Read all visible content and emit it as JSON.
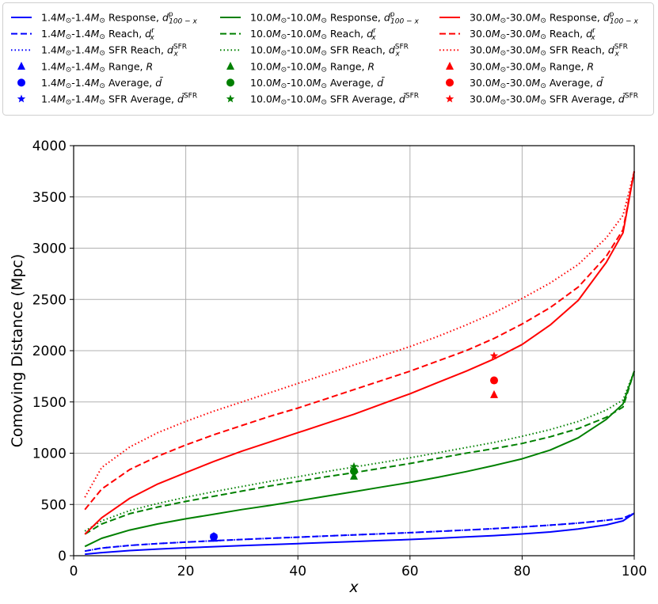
{
  "chart_data": {
    "type": "line",
    "xlabel": "x",
    "ylabel": "Comoving Distance (Mpc)",
    "xlim": [
      0,
      100
    ],
    "ylim": [
      0,
      4000
    ],
    "xticks": [
      "0",
      "20",
      "40",
      "60",
      "80",
      "100"
    ],
    "yticks": [
      "0",
      "500",
      "1000",
      "1500",
      "2000",
      "2500",
      "3000",
      "3500",
      "4000"
    ],
    "grid": true,
    "legend_position": "top",
    "colors": {
      "1.4": "#0000ff",
      "10": "#008000",
      "30": "#ff0000"
    },
    "x": [
      2,
      5,
      10,
      15,
      20,
      25,
      30,
      35,
      40,
      45,
      50,
      55,
      60,
      65,
      70,
      75,
      80,
      85,
      90,
      95,
      98,
      100
    ],
    "series": [
      {
        "name": "1.4M⊙-1.4M⊙ Response, d^p_{100-x}",
        "color": "#0000ff",
        "style": "solid",
        "values": [
          15,
          30,
          50,
          65,
          77,
          88,
          98,
          108,
          118,
          128,
          138,
          148,
          158,
          170,
          183,
          196,
          212,
          232,
          260,
          300,
          340,
          415
        ]
      },
      {
        "name": "1.4M⊙-1.4M⊙ Reach, d^r_x",
        "color": "#0000ff",
        "style": "dashed",
        "values": [
          45,
          75,
          100,
          118,
          133,
          146,
          158,
          170,
          181,
          192,
          203,
          214,
          225,
          237,
          250,
          264,
          280,
          298,
          318,
          345,
          365,
          415
        ]
      },
      {
        "name": "1.4M⊙-1.4M⊙ SFR Reach, d^SFR_x",
        "color": "#0000ff",
        "style": "dotted",
        "values": [
          45,
          75,
          100,
          118,
          133,
          146,
          158,
          170,
          181,
          192,
          203,
          214,
          225,
          237,
          250,
          264,
          280,
          298,
          318,
          345,
          365,
          415
        ]
      },
      {
        "name": "10.0M⊙-10.0M⊙ Response, d^p_{100-x}",
        "color": "#008000",
        "style": "solid",
        "values": [
          90,
          170,
          250,
          310,
          360,
          405,
          450,
          490,
          535,
          580,
          625,
          670,
          715,
          765,
          820,
          880,
          945,
          1030,
          1150,
          1330,
          1480,
          1800
        ]
      },
      {
        "name": "10.0M⊙-10.0M⊙ Reach, d^r_x",
        "color": "#008000",
        "style": "dashed",
        "values": [
          210,
          310,
          410,
          475,
          530,
          580,
          630,
          680,
          725,
          770,
          810,
          855,
          900,
          950,
          1000,
          1045,
          1095,
          1160,
          1240,
          1350,
          1450,
          1800
        ]
      },
      {
        "name": "10.0M⊙-10.0M⊙ SFR Reach, d^SFR_x",
        "color": "#008000",
        "style": "dotted",
        "values": [
          240,
          340,
          440,
          510,
          570,
          625,
          675,
          725,
          770,
          820,
          865,
          910,
          955,
          1005,
          1055,
          1105,
          1165,
          1230,
          1310,
          1420,
          1520,
          1800
        ]
      },
      {
        "name": "30.0M⊙-30.0M⊙ Response, d^p_{100-x}",
        "color": "#ff0000",
        "style": "solid",
        "values": [
          210,
          370,
          560,
          700,
          810,
          920,
          1020,
          1110,
          1200,
          1290,
          1380,
          1480,
          1580,
          1690,
          1800,
          1920,
          2060,
          2250,
          2490,
          2860,
          3150,
          3750
        ]
      },
      {
        "name": "30.0M⊙-30.0M⊙ Reach, d^r_x",
        "color": "#ff0000",
        "style": "dashed",
        "values": [
          450,
          650,
          840,
          970,
          1080,
          1180,
          1270,
          1360,
          1440,
          1530,
          1620,
          1710,
          1800,
          1900,
          2000,
          2120,
          2260,
          2420,
          2620,
          2920,
          3180,
          3750
        ]
      },
      {
        "name": "30.0M⊙-30.0M⊙ SFR Reach, d^SFR_x",
        "color": "#ff0000",
        "style": "dotted",
        "values": [
          570,
          860,
          1060,
          1200,
          1310,
          1410,
          1500,
          1590,
          1680,
          1770,
          1860,
          1950,
          2040,
          2140,
          2250,
          2370,
          2510,
          2660,
          2840,
          3100,
          3320,
          3750
        ]
      }
    ],
    "points": [
      {
        "name": "1.4M⊙-1.4M⊙ Range, R",
        "color": "#0000ff",
        "marker": "triangle",
        "x": 25,
        "y": 170
      },
      {
        "name": "1.4M⊙-1.4M⊙ Average, d̄",
        "color": "#0000ff",
        "marker": "circle",
        "x": 25,
        "y": 185
      },
      {
        "name": "1.4M⊙-1.4M⊙ SFR Average, d̄^SFR",
        "color": "#0000ff",
        "marker": "star",
        "x": 25,
        "y": 192
      },
      {
        "name": "10.0M⊙-10.0M⊙ Range, R",
        "color": "#008000",
        "marker": "triangle",
        "x": 50,
        "y": 775
      },
      {
        "name": "10.0M⊙-10.0M⊙ Average, d̄",
        "color": "#008000",
        "marker": "circle",
        "x": 50,
        "y": 825
      },
      {
        "name": "10.0M⊙-10.0M⊙ SFR Average, d̄^SFR",
        "color": "#008000",
        "marker": "star",
        "x": 50,
        "y": 870
      },
      {
        "name": "30.0M⊙-30.0M⊙ Range, R",
        "color": "#ff0000",
        "marker": "triangle",
        "x": 75,
        "y": 1570
      },
      {
        "name": "30.0M⊙-30.0M⊙ Average, d̄",
        "color": "#ff0000",
        "marker": "circle",
        "x": 75,
        "y": 1710
      },
      {
        "name": "30.0M⊙-30.0M⊙ SFR Average, d̄^SFR",
        "color": "#ff0000",
        "marker": "star",
        "x": 75,
        "y": 1950
      }
    ]
  },
  "legend": {
    "columns": [
      {
        "color": "#0000ff",
        "entries": [
          {
            "kind": "solid",
            "m": "1.4",
            "label": "Response,",
            "sym": "d",
            "sup": "p",
            "sub": "100 − x"
          },
          {
            "kind": "dashed",
            "m": "1.4",
            "label": "Reach,",
            "sym": "d",
            "sup": "r",
            "sub": "x"
          },
          {
            "kind": "dotted",
            "m": "1.4",
            "label": "SFR Reach,",
            "sym": "d",
            "sup": "SFR",
            "sub": "x"
          },
          {
            "kind": "triangle",
            "m": "1.4",
            "label": "Range,",
            "sym": "R",
            "sup": "",
            "sub": ""
          },
          {
            "kind": "circle",
            "m": "1.4",
            "label": "Average,",
            "sym": "d̄",
            "sup": "",
            "sub": ""
          },
          {
            "kind": "star",
            "m": "1.4",
            "label": "SFR Average,",
            "sym": "d̄",
            "sup": "SFR",
            "sub": ""
          }
        ]
      },
      {
        "color": "#008000",
        "entries": [
          {
            "kind": "solid",
            "m": "10.0",
            "label": "Response,",
            "sym": "d",
            "sup": "p",
            "sub": "100 − x"
          },
          {
            "kind": "dashed",
            "m": "10.0",
            "label": "Reach,",
            "sym": "d",
            "sup": "r",
            "sub": "x"
          },
          {
            "kind": "dotted",
            "m": "10.0",
            "label": "SFR Reach,",
            "sym": "d",
            "sup": "SFR",
            "sub": "x"
          },
          {
            "kind": "triangle",
            "m": "10.0",
            "label": "Range,",
            "sym": "R",
            "sup": "",
            "sub": ""
          },
          {
            "kind": "circle",
            "m": "10.0",
            "label": "Average,",
            "sym": "d̄",
            "sup": "",
            "sub": ""
          },
          {
            "kind": "star",
            "m": "10.0",
            "label": "SFR Average,",
            "sym": "d̄",
            "sup": "SFR",
            "sub": ""
          }
        ]
      },
      {
        "color": "#ff0000",
        "entries": [
          {
            "kind": "solid",
            "m": "30.0",
            "label": "Response,",
            "sym": "d",
            "sup": "p",
            "sub": "100 − x"
          },
          {
            "kind": "dashed",
            "m": "30.0",
            "label": "Reach,",
            "sym": "d",
            "sup": "r",
            "sub": "x"
          },
          {
            "kind": "dotted",
            "m": "30.0",
            "label": "SFR Reach,",
            "sym": "d",
            "sup": "SFR",
            "sub": "x"
          },
          {
            "kind": "triangle",
            "m": "30.0",
            "label": "Range,",
            "sym": "R",
            "sup": "",
            "sub": ""
          },
          {
            "kind": "circle",
            "m": "30.0",
            "label": "Average,",
            "sym": "d̄",
            "sup": "",
            "sub": ""
          },
          {
            "kind": "star",
            "m": "30.0",
            "label": "SFR Average,",
            "sym": "d̄",
            "sup": "SFR",
            "sub": ""
          }
        ]
      }
    ]
  }
}
